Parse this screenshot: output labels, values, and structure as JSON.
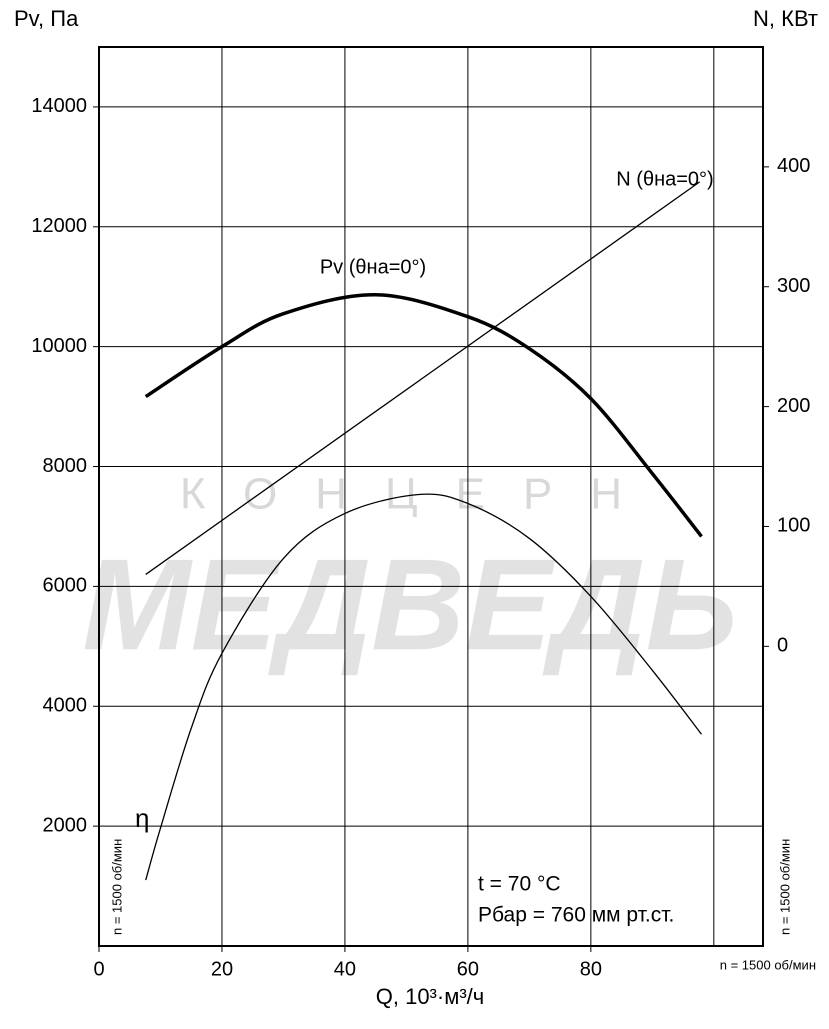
{
  "chart_data": {
    "type": "line",
    "y_label": "Pv, Па",
    "y2_label": "N, КВт",
    "x_label": "Q, 10³·м³/ч",
    "xlim": [
      0,
      108
    ],
    "xticks": [
      0,
      20,
      40,
      60,
      80
    ],
    "xgrid": [
      20,
      40,
      60,
      80,
      100
    ],
    "ylim": [
      0,
      15000
    ],
    "yticks": [
      2000,
      4000,
      6000,
      8000,
      10000,
      12000,
      14000
    ],
    "y2lim": [
      -250,
      500
    ],
    "y2ticks": [
      0,
      100,
      200,
      300,
      400
    ],
    "grid": true,
    "color": "#000000",
    "series": [
      {
        "name": "Pv (θна=0°)",
        "axis": "y",
        "width": 3.5,
        "x": [
          7.6,
          20,
          30,
          45,
          60,
          70,
          80,
          90,
          98
        ],
        "values": [
          9167,
          10000,
          10550,
          10867,
          10500,
          9967,
          9133,
          7883,
          6833
        ]
      },
      {
        "name": "N (θна=0°)",
        "axis": "y2",
        "width": 1.3,
        "x": [
          7.6,
          97.7
        ],
        "values": [
          60,
          387.5
        ]
      },
      {
        "name": "η",
        "axis": "y",
        "width": 1.3,
        "x": [
          7.6,
          10,
          15,
          20,
          30,
          40,
          52,
          60,
          70,
          80,
          90,
          98
        ],
        "values": [
          1100,
          1967,
          3633,
          4883,
          6467,
          7217,
          7533,
          7383,
          6800,
          5833,
          4600,
          3533
        ]
      }
    ],
    "annotations": [
      "t = 70 °C",
      "Pбар = 760 мм рт.ст.",
      "n = 1500 об/мин",
      "n = 1500 об/мин",
      "n = 1500 об/мин"
    ],
    "watermark": [
      "КОНЦЕРН",
      "МЕДВЕДЬ"
    ]
  }
}
